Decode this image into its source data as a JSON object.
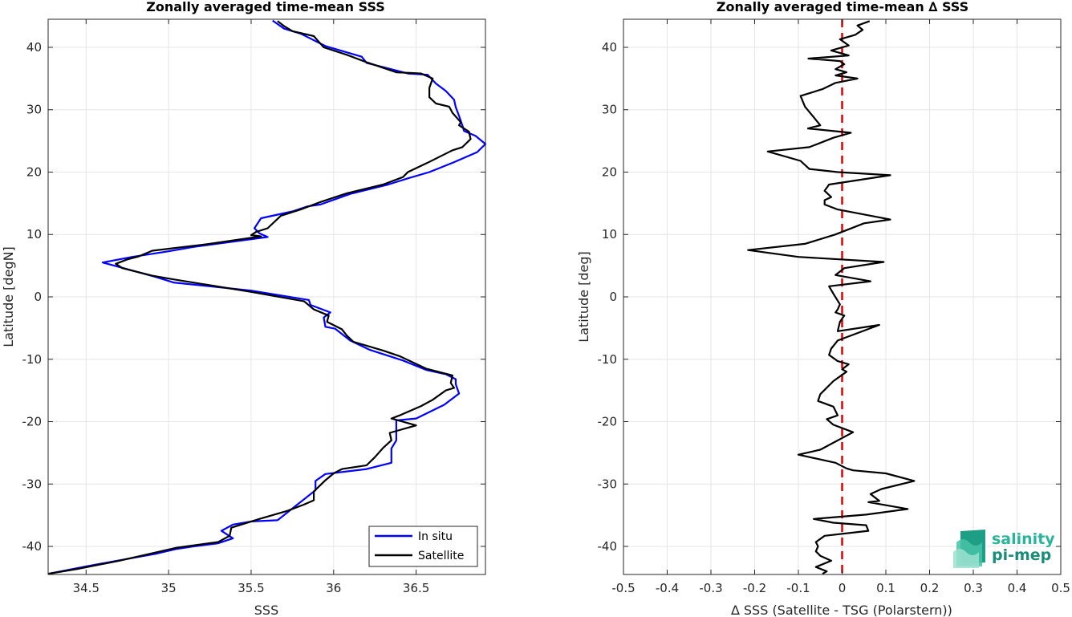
{
  "colors": {
    "in_situ": "#0000ff",
    "satellite": "#000000",
    "zero_line": "#e00000",
    "grid": "#e6e6e6",
    "logo": "#2ab59a"
  },
  "logo": {
    "line1": "salinity",
    "line2": "pi-mep"
  },
  "chart_data": [
    {
      "type": "line",
      "title": "Zonally averaged time-mean SSS",
      "xlabel": "SSS",
      "ylabel": "Latitude [degN]",
      "xlim": [
        34.27,
        36.92
      ],
      "ylim": [
        -44.5,
        44.5
      ],
      "xticks": [
        34.5,
        35,
        35.5,
        36,
        36.5
      ],
      "xtick_labels": [
        "34.5",
        "35",
        "35.5",
        "36",
        "36.5"
      ],
      "yticks": [
        -40,
        -30,
        -20,
        -10,
        0,
        10,
        20,
        30,
        40
      ],
      "ytick_labels": [
        "-40",
        "-30",
        "-20",
        "-10",
        "0",
        "10",
        "20",
        "30",
        "40"
      ],
      "grid": true,
      "legend": "bottom-right",
      "series": [
        {
          "name": "In situ",
          "points": [
            [
              35.63,
              44.3
            ],
            [
              35.7,
              43.0
            ],
            [
              35.8,
              42.2
            ],
            [
              35.95,
              40.2
            ],
            [
              36.17,
              38.5
            ],
            [
              36.2,
              37.5
            ],
            [
              36.45,
              35.8
            ],
            [
              36.57,
              35.6
            ],
            [
              36.62,
              34.2
            ],
            [
              36.68,
              33.0
            ],
            [
              36.73,
              31.6
            ],
            [
              36.74,
              30.4
            ],
            [
              36.76,
              29.0
            ],
            [
              36.78,
              27.5
            ],
            [
              36.79,
              26.6
            ],
            [
              36.86,
              25.8
            ],
            [
              36.92,
              24.5
            ],
            [
              36.87,
              23.2
            ],
            [
              36.73,
              21.6
            ],
            [
              36.58,
              20.0
            ],
            [
              36.45,
              19.0
            ],
            [
              36.33,
              18.0
            ],
            [
              36.1,
              16.5
            ],
            [
              35.92,
              14.8
            ],
            [
              35.84,
              14.5
            ],
            [
              35.75,
              13.7
            ],
            [
              35.56,
              12.6
            ],
            [
              35.52,
              11.0
            ],
            [
              35.55,
              10.2
            ],
            [
              35.6,
              9.6
            ],
            [
              35.15,
              8.0
            ],
            [
              35.0,
              7.3
            ],
            [
              34.78,
              6.4
            ],
            [
              34.6,
              5.5
            ],
            [
              34.67,
              5.0
            ],
            [
              34.92,
              3.2
            ],
            [
              35.03,
              2.3
            ],
            [
              35.5,
              1.0
            ],
            [
              35.85,
              -0.5
            ],
            [
              35.86,
              -1.3
            ],
            [
              35.98,
              -2.5
            ],
            [
              35.94,
              -3.3
            ],
            [
              35.95,
              -4.8
            ],
            [
              36.01,
              -5.1
            ],
            [
              36.1,
              -7.0
            ],
            [
              36.22,
              -8.5
            ],
            [
              36.42,
              -10.2
            ],
            [
              36.56,
              -11.7
            ],
            [
              36.68,
              -12.4
            ],
            [
              36.74,
              -13.2
            ],
            [
              36.74,
              -14.0
            ],
            [
              36.76,
              -15.5
            ],
            [
              36.67,
              -17.3
            ],
            [
              36.5,
              -19.5
            ],
            [
              36.38,
              -19.8
            ],
            [
              36.38,
              -22.0
            ],
            [
              36.38,
              -23.0
            ],
            [
              36.35,
              -24.3
            ],
            [
              36.35,
              -26.6
            ],
            [
              36.2,
              -27.6
            ],
            [
              35.95,
              -28.4
            ],
            [
              35.89,
              -29.5
            ],
            [
              35.89,
              -31.0
            ],
            [
              35.77,
              -33.5
            ],
            [
              35.66,
              -35.8
            ],
            [
              35.5,
              -36.0
            ],
            [
              35.39,
              -36.5
            ],
            [
              35.32,
              -37.5
            ],
            [
              35.39,
              -38.7
            ],
            [
              35.3,
              -39.5
            ],
            [
              35.15,
              -40.0
            ],
            [
              35.05,
              -40.4
            ],
            [
              34.92,
              -41.2
            ],
            [
              34.75,
              -42.0
            ],
            [
              34.5,
              -43.2
            ],
            [
              34.27,
              -44.4
            ]
          ]
        },
        {
          "name": "Satellite",
          "points": [
            [
              35.66,
              44.2
            ],
            [
              35.7,
              43.4
            ],
            [
              35.75,
              42.6
            ],
            [
              35.88,
              41.8
            ],
            [
              35.92,
              40.6
            ],
            [
              35.94,
              40.0
            ],
            [
              36.08,
              38.8
            ],
            [
              36.2,
              37.6
            ],
            [
              36.38,
              36.0
            ],
            [
              36.53,
              35.8
            ],
            [
              36.6,
              35.0
            ],
            [
              36.58,
              33.5
            ],
            [
              36.58,
              32.0
            ],
            [
              36.62,
              31.0
            ],
            [
              36.7,
              30.5
            ],
            [
              36.72,
              29.5
            ],
            [
              36.77,
              28.0
            ],
            [
              36.76,
              27.5
            ],
            [
              36.82,
              26.5
            ],
            [
              36.83,
              25.3
            ],
            [
              36.78,
              24.0
            ],
            [
              36.72,
              23.5
            ],
            [
              36.57,
              21.5
            ],
            [
              36.45,
              20.0
            ],
            [
              36.42,
              19.2
            ],
            [
              36.3,
              18.0
            ],
            [
              36.08,
              16.6
            ],
            [
              35.92,
              15.2
            ],
            [
              35.8,
              14.0
            ],
            [
              35.68,
              13.0
            ],
            [
              35.6,
              11.0
            ],
            [
              35.53,
              10.4
            ],
            [
              35.5,
              9.9
            ],
            [
              35.56,
              9.7
            ],
            [
              35.25,
              8.5
            ],
            [
              34.9,
              7.4
            ],
            [
              34.82,
              6.5
            ],
            [
              34.75,
              6.0
            ],
            [
              34.68,
              5.3
            ],
            [
              34.72,
              4.6
            ],
            [
              34.9,
              3.4
            ],
            [
              35.03,
              2.8
            ],
            [
              35.5,
              0.8
            ],
            [
              35.82,
              -0.7
            ],
            [
              35.88,
              -2.0
            ],
            [
              35.97,
              -3.0
            ],
            [
              35.96,
              -4.0
            ],
            [
              36.05,
              -5.2
            ],
            [
              36.08,
              -6.2
            ],
            [
              36.12,
              -7.2
            ],
            [
              36.3,
              -8.6
            ],
            [
              36.4,
              -9.5
            ],
            [
              36.56,
              -11.5
            ],
            [
              36.72,
              -12.6
            ],
            [
              36.71,
              -13.8
            ],
            [
              36.73,
              -14.6
            ],
            [
              36.68,
              -15.0
            ],
            [
              36.6,
              -16.5
            ],
            [
              36.53,
              -17.5
            ],
            [
              36.4,
              -19.0
            ],
            [
              36.35,
              -19.5
            ],
            [
              36.5,
              -20.6
            ],
            [
              36.34,
              -21.8
            ],
            [
              36.35,
              -23.0
            ],
            [
              36.3,
              -24.2
            ],
            [
              36.25,
              -25.7
            ],
            [
              36.2,
              -27.0
            ],
            [
              36.05,
              -27.6
            ],
            [
              36.0,
              -28.3
            ],
            [
              35.95,
              -29.4
            ],
            [
              35.88,
              -31.2
            ],
            [
              35.88,
              -32.6
            ],
            [
              35.82,
              -33.3
            ],
            [
              35.72,
              -34.3
            ],
            [
              35.55,
              -35.6
            ],
            [
              35.38,
              -37.0
            ],
            [
              35.37,
              -38.3
            ],
            [
              35.3,
              -39.3
            ],
            [
              35.05,
              -40.2
            ],
            [
              34.85,
              -41.4
            ],
            [
              34.7,
              -42.3
            ],
            [
              34.45,
              -43.6
            ],
            [
              34.27,
              -44.4
            ]
          ]
        }
      ]
    },
    {
      "type": "line",
      "title": "Zonally averaged time-mean ∆ SSS",
      "xlabel": "∆ SSS (Satellite - TSG (Polarstern))",
      "ylabel": "Latitude [deg]",
      "xlim": [
        -0.5,
        0.5
      ],
      "ylim": [
        -44.5,
        44.5
      ],
      "xticks": [
        -0.5,
        -0.4,
        -0.3,
        -0.2,
        -0.1,
        0,
        0.1,
        0.2,
        0.3,
        0.4,
        0.5
      ],
      "xtick_labels": [
        "-0.5",
        "-0.4",
        "-0.3",
        "-0.2",
        "-0.1",
        "0",
        "0.1",
        "0.2",
        "0.3",
        "0.4",
        "0.5"
      ],
      "yticks": [
        -40,
        -30,
        -20,
        -10,
        0,
        10,
        20,
        30,
        40
      ],
      "ytick_labels": [
        "-40",
        "-30",
        "-20",
        "-10",
        "0",
        "10",
        "20",
        "30",
        "40"
      ],
      "grid": true,
      "reference_line_x": 0,
      "series": [
        {
          "points": [
            [
              0.063,
              44.2
            ],
            [
              0.035,
              43.5
            ],
            [
              0.047,
              42.8
            ],
            [
              0.03,
              42.0
            ],
            [
              -0.005,
              41.3
            ],
            [
              0.015,
              40.3
            ],
            [
              -0.025,
              39.5
            ],
            [
              0.015,
              38.7
            ],
            [
              -0.077,
              38.2
            ],
            [
              -0.005,
              37.8
            ],
            [
              0.005,
              37.3
            ],
            [
              -0.015,
              36.5
            ],
            [
              0.01,
              36.0
            ],
            [
              -0.015,
              35.5
            ],
            [
              0.035,
              35.0
            ],
            [
              -0.015,
              34.3
            ],
            [
              -0.045,
              33.3
            ],
            [
              -0.095,
              32.2
            ],
            [
              -0.085,
              30.5
            ],
            [
              -0.065,
              28.8
            ],
            [
              -0.05,
              27.5
            ],
            [
              -0.078,
              27.0
            ],
            [
              0.02,
              26.3
            ],
            [
              -0.02,
              25.5
            ],
            [
              -0.075,
              24.0
            ],
            [
              -0.17,
              23.3
            ],
            [
              -0.095,
              21.8
            ],
            [
              -0.075,
              20.5
            ],
            [
              -0.01,
              20.0
            ],
            [
              0.11,
              19.5
            ],
            [
              -0.03,
              18.0
            ],
            [
              -0.04,
              17.0
            ],
            [
              -0.025,
              16.0
            ],
            [
              -0.04,
              15.5
            ],
            [
              -0.04,
              14.8
            ],
            [
              -0.01,
              14.0
            ],
            [
              0.11,
              12.4
            ],
            [
              0.05,
              11.8
            ],
            [
              -0.015,
              10.0
            ],
            [
              -0.085,
              8.5
            ],
            [
              -0.215,
              7.5
            ],
            [
              -0.1,
              6.4
            ],
            [
              0.095,
              5.6
            ],
            [
              0.005,
              4.6
            ],
            [
              -0.015,
              3.5
            ],
            [
              0.065,
              2.5
            ],
            [
              -0.03,
              1.7
            ],
            [
              -0.02,
              0.5
            ],
            [
              -0.005,
              -1.2
            ],
            [
              -0.01,
              -2.0
            ],
            [
              -0.015,
              -2.5
            ],
            [
              0.005,
              -3.0
            ],
            [
              -0.005,
              -4.0
            ],
            [
              -0.01,
              -5.5
            ],
            [
              0.085,
              -4.5
            ],
            [
              -0.01,
              -7.0
            ],
            [
              -0.025,
              -8.3
            ],
            [
              -0.03,
              -9.3
            ],
            [
              -0.01,
              -10.3
            ],
            [
              0.015,
              -10.8
            ],
            [
              0.0,
              -11.6
            ],
            [
              0.01,
              -12.0
            ],
            [
              -0.02,
              -13.5
            ],
            [
              -0.05,
              -15.6
            ],
            [
              -0.055,
              -16.7
            ],
            [
              -0.02,
              -17.6
            ],
            [
              -0.01,
              -19.0
            ],
            [
              -0.035,
              -19.6
            ],
            [
              -0.02,
              -20.5
            ],
            [
              0.025,
              -21.7
            ],
            [
              -0.05,
              -24.5
            ],
            [
              -0.1,
              -25.3
            ],
            [
              -0.015,
              -26.6
            ],
            [
              0.01,
              -27.5
            ],
            [
              0.025,
              -27.8
            ],
            [
              0.1,
              -28.3
            ],
            [
              0.165,
              -29.5
            ],
            [
              0.09,
              -30.8
            ],
            [
              0.065,
              -31.6
            ],
            [
              0.085,
              -32.7
            ],
            [
              0.06,
              -32.9
            ],
            [
              0.15,
              -34.0
            ],
            [
              0.055,
              -34.9
            ],
            [
              -0.065,
              -35.6
            ],
            [
              -0.02,
              -36.2
            ],
            [
              0.055,
              -36.6
            ],
            [
              0.06,
              -37.5
            ],
            [
              -0.04,
              -38.3
            ],
            [
              -0.06,
              -39.3
            ],
            [
              -0.055,
              -40.0
            ],
            [
              -0.06,
              -40.8
            ],
            [
              -0.05,
              -41.5
            ],
            [
              -0.025,
              -42.3
            ],
            [
              -0.06,
              -43.3
            ],
            [
              -0.035,
              -44.0
            ],
            [
              -0.045,
              -44.4
            ]
          ]
        }
      ]
    }
  ]
}
